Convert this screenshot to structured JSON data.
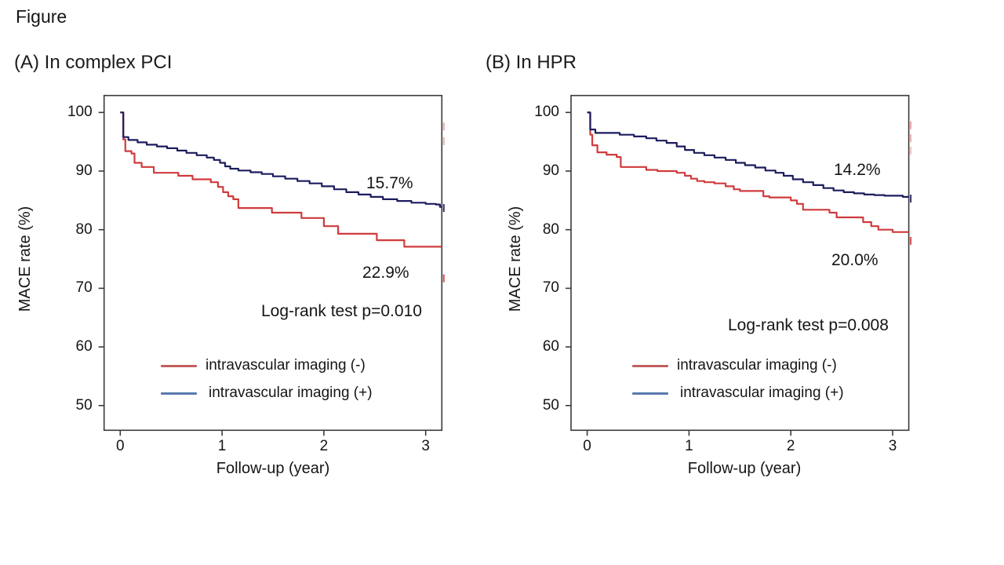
{
  "figure_label": "Figure",
  "chart_data": [
    {
      "type": "line",
      "step": true,
      "grid": false,
      "title": "(A) In complex PCI",
      "xlabel": "Follow-up (year)",
      "ylabel": "MACE rate (%)",
      "xlim": [
        -0.16,
        3.16
      ],
      "ylim": [
        46,
        103
      ],
      "x_ticks": [
        0,
        1,
        2,
        3
      ],
      "y_ticks": [
        100,
        90,
        80,
        70,
        60,
        50
      ],
      "legend_position": "lower center",
      "annotations": {
        "upper_rate": "15.7%",
        "lower_rate": "22.9%",
        "logrank": "Log-rank test p=0.010"
      },
      "series": [
        {
          "name": "intravascular imaging (-)",
          "color": "#cf3b3d",
          "legend_color": "#c35f5f",
          "final_event_rate": "22.9%",
          "points": [
            [
              0,
              100
            ],
            [
              0.03,
              95.4
            ],
            [
              0.05,
              93.4
            ],
            [
              0.11,
              93.0
            ],
            [
              0.14,
              91.4
            ],
            [
              0.21,
              90.7
            ],
            [
              0.33,
              89.7
            ],
            [
              0.57,
              89.2
            ],
            [
              0.71,
              88.6
            ],
            [
              0.89,
              88.1
            ],
            [
              0.96,
              87.3
            ],
            [
              1.01,
              86.4
            ],
            [
              1.06,
              85.7
            ],
            [
              1.11,
              85.2
            ],
            [
              1.16,
              83.7
            ],
            [
              1.49,
              82.9
            ],
            [
              1.78,
              82.0
            ],
            [
              2.0,
              80.6
            ],
            [
              2.14,
              79.3
            ],
            [
              2.52,
              78.2
            ],
            [
              2.79,
              77.1
            ],
            [
              3.16,
              77.1
            ]
          ]
        },
        {
          "name": "intravascular imaging (+)",
          "color": "#1c1c5e",
          "legend_color": "#5a79ae",
          "final_event_rate": "15.7%",
          "points": [
            [
              0,
              100
            ],
            [
              0.03,
              95.8
            ],
            [
              0.08,
              95.3
            ],
            [
              0.17,
              94.9
            ],
            [
              0.26,
              94.5
            ],
            [
              0.36,
              94.2
            ],
            [
              0.46,
              93.9
            ],
            [
              0.56,
              93.5
            ],
            [
              0.65,
              93.1
            ],
            [
              0.75,
              92.7
            ],
            [
              0.85,
              92.3
            ],
            [
              0.92,
              91.9
            ],
            [
              0.98,
              91.4
            ],
            [
              1.03,
              90.8
            ],
            [
              1.08,
              90.4
            ],
            [
              1.16,
              90.1
            ],
            [
              1.28,
              89.8
            ],
            [
              1.39,
              89.5
            ],
            [
              1.5,
              89.1
            ],
            [
              1.62,
              88.7
            ],
            [
              1.74,
              88.3
            ],
            [
              1.86,
              87.9
            ],
            [
              1.98,
              87.4
            ],
            [
              2.1,
              86.9
            ],
            [
              2.22,
              86.4
            ],
            [
              2.34,
              86.0
            ],
            [
              2.46,
              85.6
            ],
            [
              2.58,
              85.2
            ],
            [
              2.72,
              84.9
            ],
            [
              2.86,
              84.6
            ],
            [
              3.0,
              84.4
            ],
            [
              3.1,
              84.3
            ],
            [
              3.14,
              83.9
            ]
          ]
        }
      ],
      "edge_marks": [
        {
          "value": 97.6,
          "series": 0,
          "opacity": 0.45
        },
        {
          "value": 95.1,
          "series": 0,
          "opacity": 0.4
        },
        {
          "value": 83.7,
          "series": 1,
          "opacity": 0.9
        },
        {
          "value": 71.7,
          "series": 0,
          "opacity": 0.9
        }
      ]
    },
    {
      "type": "line",
      "step": true,
      "grid": false,
      "title": "(B) In HPR",
      "xlabel": "Follow-up (year)",
      "ylabel": "MACE rate (%)",
      "xlim": [
        -0.16,
        3.16
      ],
      "ylim": [
        46,
        103
      ],
      "x_ticks": [
        0,
        1,
        2,
        3
      ],
      "y_ticks": [
        100,
        90,
        80,
        70,
        60,
        50
      ],
      "legend_position": "lower center",
      "annotations": {
        "upper_rate": "14.2%",
        "lower_rate": "20.0%",
        "logrank": "Log-rank test p=0.008"
      },
      "series": [
        {
          "name": "intravascular imaging (-)",
          "color": "#cf3b3d",
          "legend_color": "#c35f5f",
          "final_event_rate": "20.0%",
          "points": [
            [
              0,
              100
            ],
            [
              0.03,
              96.2
            ],
            [
              0.05,
              94.4
            ],
            [
              0.1,
              93.2
            ],
            [
              0.19,
              92.8
            ],
            [
              0.29,
              92.4
            ],
            [
              0.33,
              90.7
            ],
            [
              0.58,
              90.2
            ],
            [
              0.69,
              90.0
            ],
            [
              0.88,
              89.7
            ],
            [
              0.96,
              89.2
            ],
            [
              1.02,
              88.7
            ],
            [
              1.08,
              88.3
            ],
            [
              1.15,
              88.1
            ],
            [
              1.25,
              87.9
            ],
            [
              1.36,
              87.4
            ],
            [
              1.44,
              86.9
            ],
            [
              1.5,
              86.6
            ],
            [
              1.73,
              85.7
            ],
            [
              1.79,
              85.5
            ],
            [
              2.0,
              85.0
            ],
            [
              2.06,
              84.4
            ],
            [
              2.12,
              83.4
            ],
            [
              2.38,
              82.9
            ],
            [
              2.45,
              82.1
            ],
            [
              2.71,
              81.3
            ],
            [
              2.79,
              80.6
            ],
            [
              2.86,
              80.0
            ],
            [
              3.0,
              79.6
            ],
            [
              3.16,
              79.6
            ]
          ]
        },
        {
          "name": "intravascular imaging (+)",
          "color": "#1c1c5e",
          "legend_color": "#5a79ae",
          "final_event_rate": "14.2%",
          "points": [
            [
              0,
              100
            ],
            [
              0.03,
              97.1
            ],
            [
              0.08,
              96.5
            ],
            [
              0.32,
              96.2
            ],
            [
              0.46,
              95.9
            ],
            [
              0.58,
              95.6
            ],
            [
              0.68,
              95.2
            ],
            [
              0.78,
              94.8
            ],
            [
              0.88,
              94.2
            ],
            [
              0.96,
              93.6
            ],
            [
              1.05,
              93.1
            ],
            [
              1.15,
              92.7
            ],
            [
              1.25,
              92.3
            ],
            [
              1.36,
              91.9
            ],
            [
              1.46,
              91.4
            ],
            [
              1.55,
              91.0
            ],
            [
              1.65,
              90.6
            ],
            [
              1.75,
              90.1
            ],
            [
              1.85,
              89.7
            ],
            [
              1.93,
              89.2
            ],
            [
              2.02,
              88.6
            ],
            [
              2.12,
              88.1
            ],
            [
              2.22,
              87.6
            ],
            [
              2.32,
              87.1
            ],
            [
              2.42,
              86.7
            ],
            [
              2.52,
              86.4
            ],
            [
              2.62,
              86.2
            ],
            [
              2.72,
              86.0
            ],
            [
              2.82,
              85.9
            ],
            [
              2.92,
              85.8
            ],
            [
              3.1,
              85.6
            ],
            [
              3.16,
              85.6
            ]
          ]
        }
      ],
      "edge_marks": [
        {
          "value": 97.8,
          "series": 0,
          "opacity": 0.45
        },
        {
          "value": 95.6,
          "series": 0,
          "opacity": 0.4
        },
        {
          "value": 93.5,
          "series": 0,
          "opacity": 0.3
        },
        {
          "value": 85.3,
          "series": 1,
          "opacity": 0.9
        },
        {
          "value": 78.1,
          "series": 0,
          "opacity": 0.9
        }
      ]
    }
  ]
}
